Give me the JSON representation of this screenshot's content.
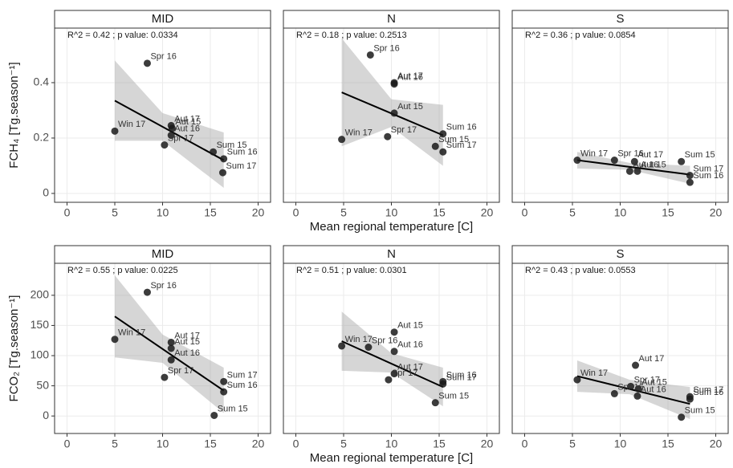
{
  "chart_data": [
    {
      "type": "scatter",
      "title": "MID",
      "annotation": "R^2 =  0.42 ; p value:  0.0334",
      "y_label": "FCH₄ [Tg.season⁻¹]",
      "x": [
        8.4,
        5.0,
        10.9,
        11.0,
        10.9,
        10.2,
        15.3,
        16.4,
        16.3
      ],
      "values": [
        0.47,
        0.225,
        0.245,
        0.235,
        0.21,
        0.175,
        0.15,
        0.125,
        0.075
      ],
      "point_labels": [
        "Spr 16",
        "Win 17",
        "Aut 17",
        "Aut 15",
        "Aut 16",
        "Spr 17",
        "Sum 15",
        "Sum 16",
        "Sum 17"
      ],
      "fit_x": [
        5.0,
        16.4
      ],
      "fit_y": [
        0.335,
        0.12
      ],
      "band_x": [
        5.0,
        10.0,
        16.4
      ],
      "band_lower": [
        0.19,
        0.19,
        0.02
      ],
      "band_upper": [
        0.48,
        0.29,
        0.22
      ],
      "xlim": [
        -1.3,
        21.3
      ],
      "xticks": [
        0,
        5,
        10,
        15,
        20
      ],
      "ylim": [
        -0.032,
        0.597
      ],
      "yticks": [
        0.0,
        0.2,
        0.4
      ],
      "grid": true,
      "color": "#1a1a1a"
    },
    {
      "type": "scatter",
      "title": "N",
      "annotation": "R^2 =  0.18 ; p value:  0.2513",
      "x_label": "Mean regional temperature [C]",
      "x": [
        7.8,
        10.3,
        10.3,
        10.3,
        4.8,
        9.6,
        15.4,
        14.6,
        15.4
      ],
      "values": [
        0.5,
        0.4,
        0.395,
        0.29,
        0.195,
        0.205,
        0.215,
        0.17,
        0.15
      ],
      "point_labels": [
        "Spr 16",
        "Aut 17",
        "Aut 16",
        "Aut 15",
        "Win 17",
        "Spr 17",
        "Sum 16",
        "Sum 15",
        "Sum 17"
      ],
      "fit_x": [
        4.8,
        15.4
      ],
      "fit_y": [
        0.365,
        0.21
      ],
      "band_x": [
        4.8,
        10.0,
        15.4
      ],
      "band_lower": [
        0.17,
        0.24,
        0.1
      ],
      "band_upper": [
        0.56,
        0.34,
        0.32
      ],
      "xlim": [
        -1.3,
        21.3
      ],
      "xticks": [
        0,
        5,
        10,
        15,
        20
      ],
      "ylim": [
        -0.032,
        0.597
      ],
      "yticks": [
        0.0,
        0.2,
        0.4
      ],
      "grid": true,
      "color": "#1a1a1a"
    },
    {
      "type": "scatter",
      "title": "S",
      "annotation": "R^2 =  0.36 ; p value:  0.0854",
      "x": [
        5.5,
        9.4,
        11.5,
        11.8,
        11.0,
        16.4,
        17.3,
        17.3
      ],
      "values": [
        0.12,
        0.12,
        0.115,
        0.08,
        0.08,
        0.115,
        0.065,
        0.04
      ],
      "point_labels": [
        "Win 17",
        "Spr 16",
        "Aut 17",
        "Aut 15",
        "Aut 16",
        "Sum 15",
        "Sum 17",
        "Sum 16"
      ],
      "fit_x": [
        5.5,
        17.3
      ],
      "fit_y": [
        0.12,
        0.068
      ],
      "band_x": [
        5.5,
        11.0,
        17.3
      ],
      "band_lower": [
        0.09,
        0.085,
        0.035
      ],
      "band_upper": [
        0.15,
        0.11,
        0.1
      ],
      "xlim": [
        -1.3,
        21.3
      ],
      "xticks": [
        0,
        5,
        10,
        15,
        20
      ],
      "ylim": [
        -0.032,
        0.597
      ],
      "yticks": [
        0.0,
        0.2,
        0.4
      ],
      "grid": true,
      "color": "#1a1a1a"
    },
    {
      "type": "scatter",
      "title": "MID",
      "annotation": "R^2 =  0.55 ; p value:  0.0225",
      "y_label": "FCO₂ [Tg.season⁻¹]",
      "x": [
        8.4,
        5.0,
        10.9,
        10.9,
        10.9,
        10.2,
        16.4,
        16.4,
        15.4
      ],
      "values": [
        205,
        127,
        122,
        112,
        93,
        64,
        57,
        40,
        1
      ],
      "point_labels": [
        "Spr 16",
        "Win 17",
        "Aut 17",
        "Aut 15",
        "Aut 16",
        "Spr 17",
        "Sum 17",
        "Sum 16",
        "Sum 15"
      ],
      "fit_x": [
        5.0,
        16.4
      ],
      "fit_y": [
        165,
        42
      ],
      "band_x": [
        5.0,
        10.0,
        16.4
      ],
      "band_lower": [
        97,
        88,
        5
      ],
      "band_upper": [
        233,
        135,
        80
      ],
      "xlim": [
        -1.3,
        21.3
      ],
      "xticks": [
        0,
        5,
        10,
        15,
        20
      ],
      "ylim": [
        -29,
        253
      ],
      "yticks": [
        0,
        50,
        100,
        150,
        200
      ],
      "grid": true,
      "color": "#1a1a1a"
    },
    {
      "type": "scatter",
      "title": "N",
      "annotation": "R^2 =  0.51 ; p value:  0.0301",
      "x_label": "Mean regional temperature [C]",
      "x": [
        10.3,
        4.8,
        7.6,
        10.3,
        10.3,
        9.7,
        15.4,
        15.4,
        14.6
      ],
      "values": [
        139,
        116,
        114,
        107,
        70,
        60,
        57,
        53,
        22
      ],
      "point_labels": [
        "Aut 15",
        "Win 17",
        "Spr 16",
        "Aut 16",
        "Aut 17",
        "Spr 17",
        "Sum 16",
        "Sum 17",
        "Sum 15"
      ],
      "fit_x": [
        4.8,
        15.4
      ],
      "fit_y": [
        124,
        48
      ],
      "band_x": [
        4.8,
        10.0,
        15.4
      ],
      "band_lower": [
        75,
        72,
        16
      ],
      "band_upper": [
        173,
        104,
        80
      ],
      "xlim": [
        -1.3,
        21.3
      ],
      "xticks": [
        0,
        5,
        10,
        15,
        20
      ],
      "ylim": [
        -29,
        253
      ],
      "yticks": [
        0,
        50,
        100,
        150,
        200
      ],
      "grid": true,
      "color": "#1a1a1a"
    },
    {
      "type": "scatter",
      "title": "S",
      "annotation": "R^2 =  0.43 ; p value:  0.0553",
      "x": [
        11.6,
        5.5,
        11.1,
        11.9,
        9.4,
        11.8,
        17.3,
        17.3,
        16.4
      ],
      "values": [
        84,
        60,
        49,
        45,
        37,
        33,
        32,
        28,
        -2
      ],
      "point_labels": [
        "Aut 17",
        "Win 17",
        "Spr 17",
        "Aut 15",
        "Spr 16",
        "Aut 16",
        "Sum 17",
        "Sum 16",
        "Sum 15"
      ],
      "fit_x": [
        5.5,
        17.3
      ],
      "fit_y": [
        66,
        20
      ],
      "band_x": [
        5.5,
        11.0,
        17.3
      ],
      "band_lower": [
        40,
        36,
        -5
      ],
      "band_upper": [
        92,
        60,
        48
      ],
      "xlim": [
        -1.3,
        21.3
      ],
      "xticks": [
        0,
        5,
        10,
        15,
        20
      ],
      "ylim": [
        -29,
        253
      ],
      "yticks": [
        0,
        50,
        100,
        150,
        200
      ],
      "grid": true,
      "color": "#1a1a1a"
    }
  ]
}
